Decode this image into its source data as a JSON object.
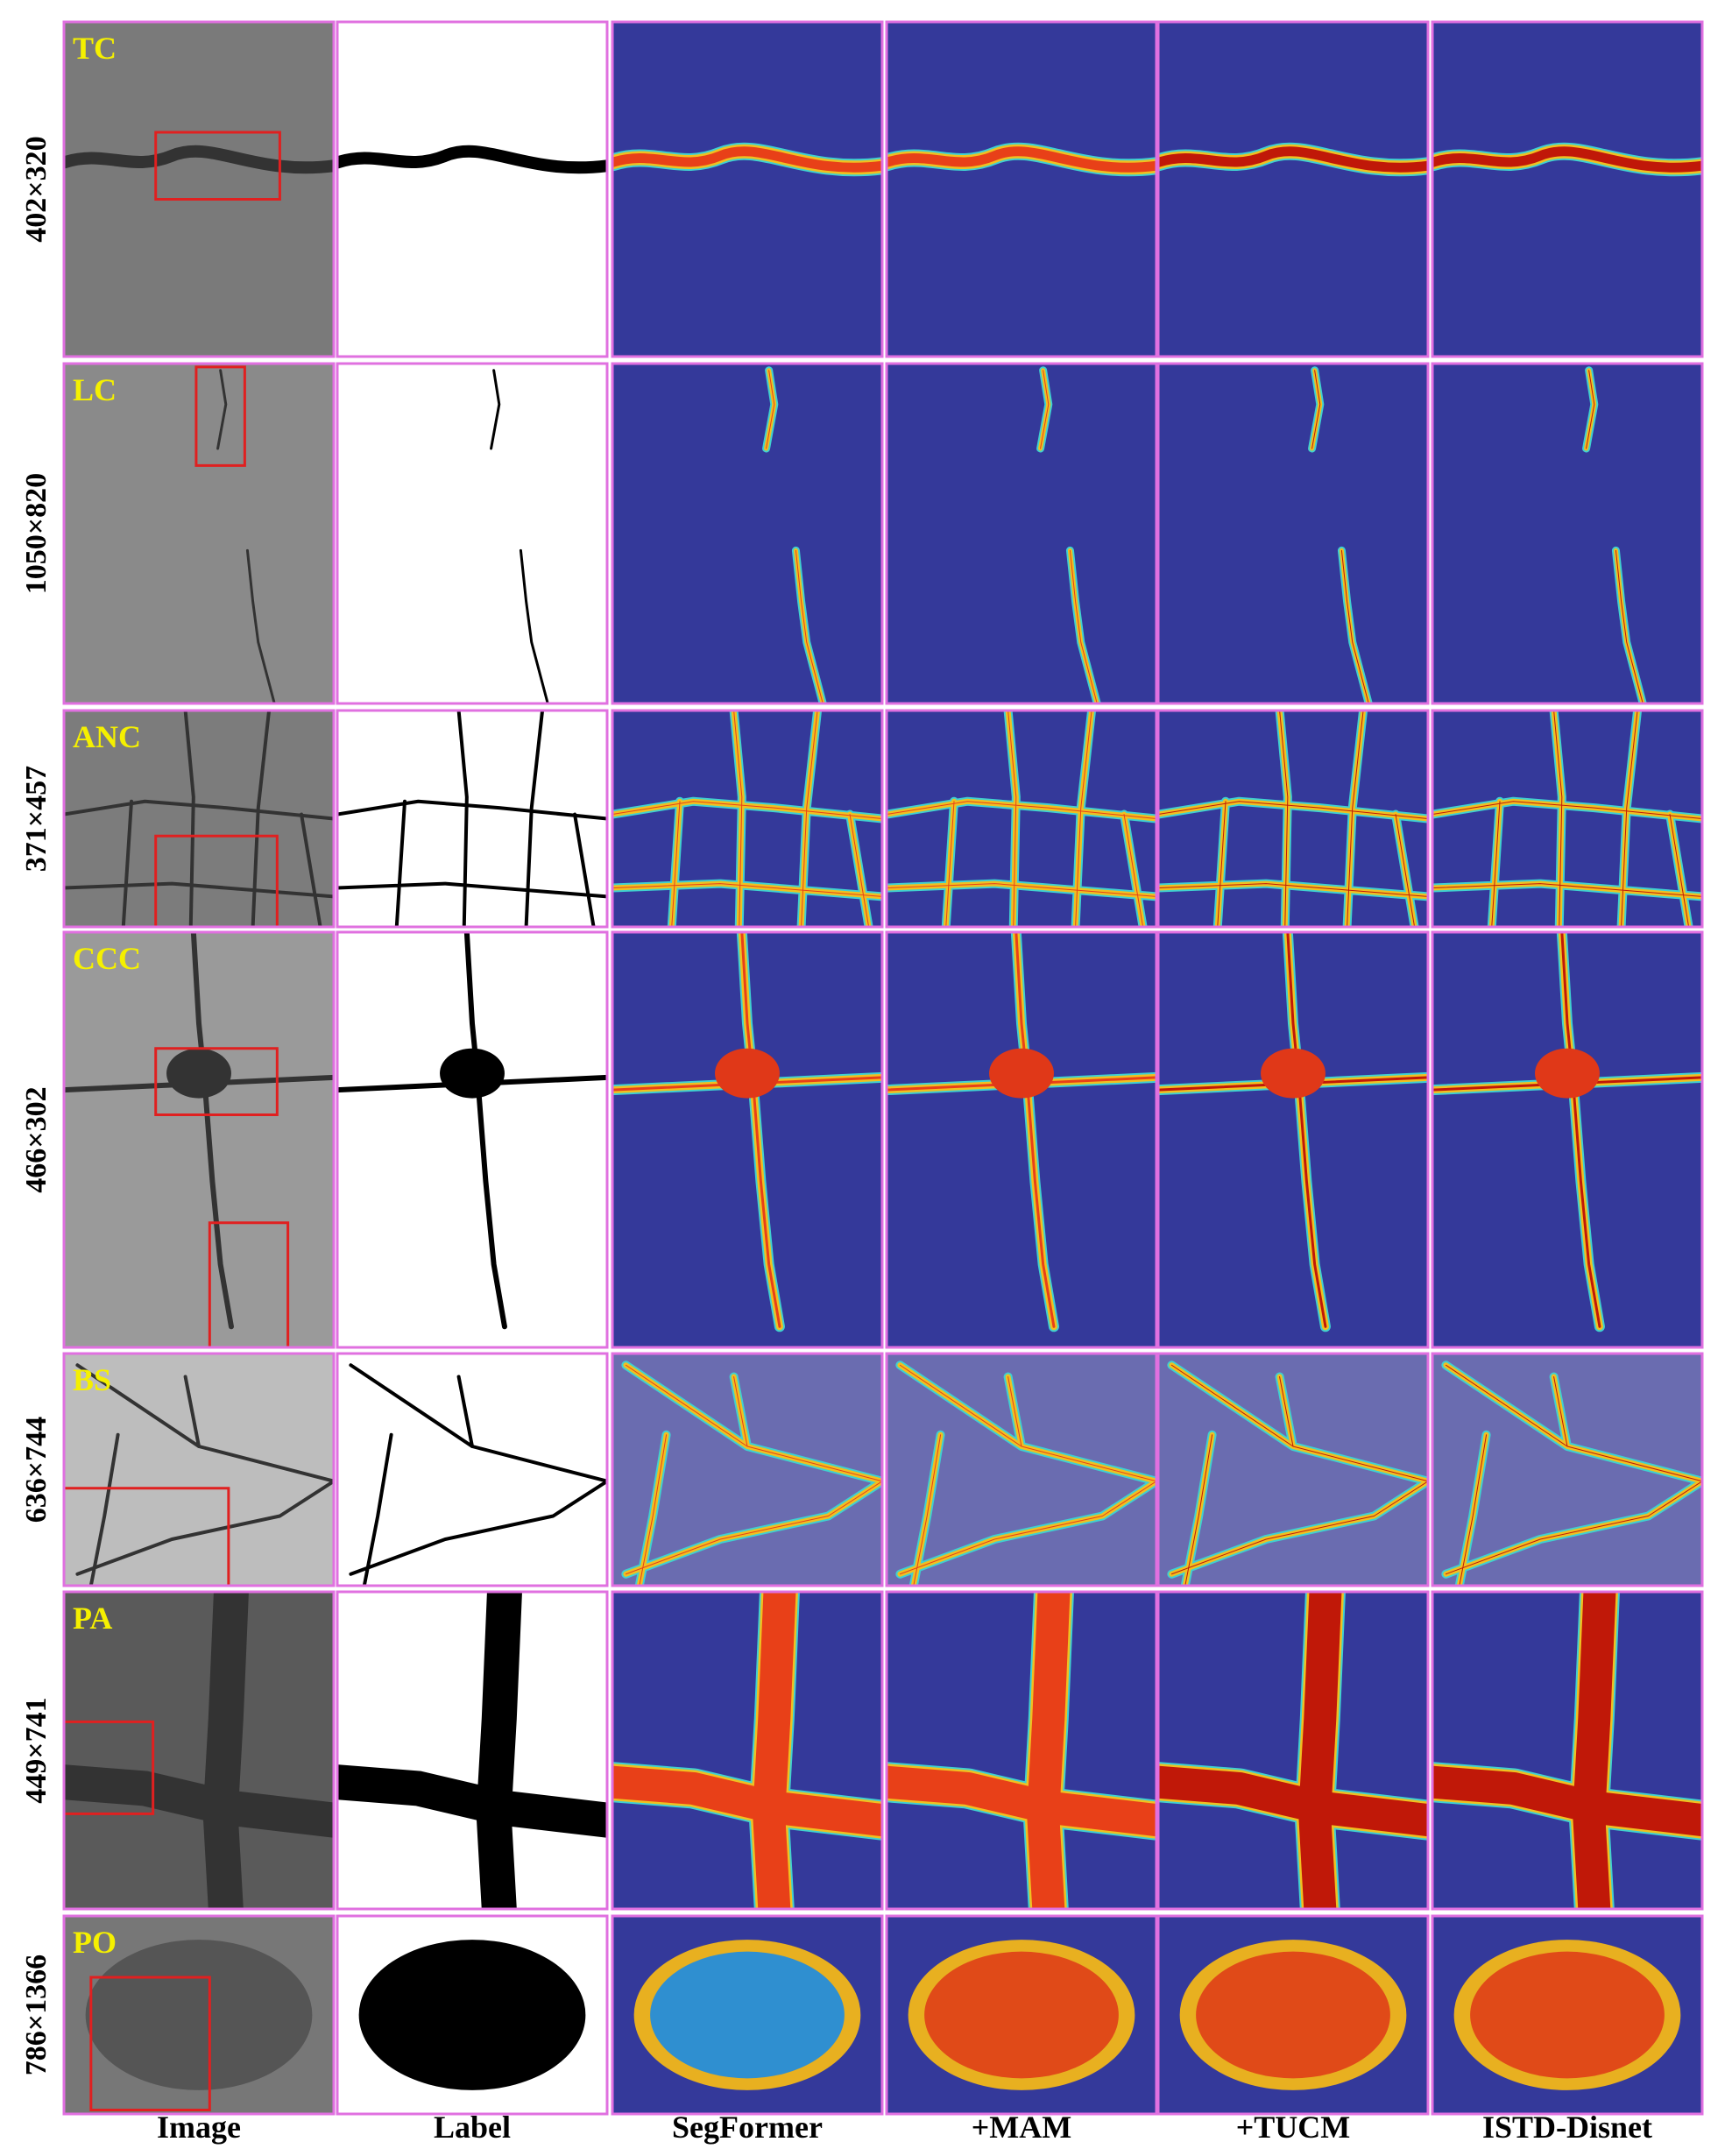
{
  "rows": [
    {
      "tag": "TC",
      "size": "402×320"
    },
    {
      "tag": "LC",
      "size": "1050×820"
    },
    {
      "tag": "ANC",
      "size": "371×457"
    },
    {
      "tag": "CCC",
      "size": "466×302"
    },
    {
      "tag": "BS",
      "size": "636×744"
    },
    {
      "tag": "PA",
      "size": "449×741"
    },
    {
      "tag": "PO",
      "size": "786×1366"
    }
  ],
  "columns": [
    "Image",
    "Label",
    "SegFormer",
    "+MAM",
    "+TUCM",
    "ISTD-Disnet"
  ]
}
